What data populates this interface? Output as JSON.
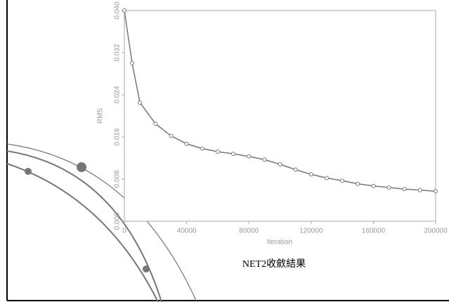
{
  "chart_data": {
    "type": "line",
    "x_label": "Iteration",
    "y_label": "RMS",
    "x": [
      0,
      5000,
      10000,
      20000,
      30000,
      40000,
      50000,
      60000,
      70000,
      80000,
      90000,
      100000,
      110000,
      120000,
      130000,
      140000,
      150000,
      160000,
      170000,
      180000,
      190000,
      200000
    ],
    "series": [
      {
        "color": "#777777",
        "values": [
          0.04,
          0.03,
          0.0225,
          0.0185,
          0.0162,
          0.0147,
          0.0138,
          0.0132,
          0.0128,
          0.0123,
          0.0117,
          0.0108,
          0.0098,
          0.0089,
          0.0082,
          0.0077,
          0.0071,
          0.0067,
          0.0064,
          0.0061,
          0.0059,
          0.0057
        ]
      }
    ],
    "xlim": [
      0,
      200000
    ],
    "xticks": [
      0,
      40000,
      80000,
      120000,
      160000,
      200000
    ],
    "ylim": [
      0,
      0.04
    ],
    "yticks": [
      {
        "value": 0,
        "label": "0.000"
      },
      0.008,
      0.016,
      0.024,
      0.032,
      {
        "value": 0.04,
        "label": "0.040"
      }
    ]
  },
  "caption": "NET2收斂結果"
}
